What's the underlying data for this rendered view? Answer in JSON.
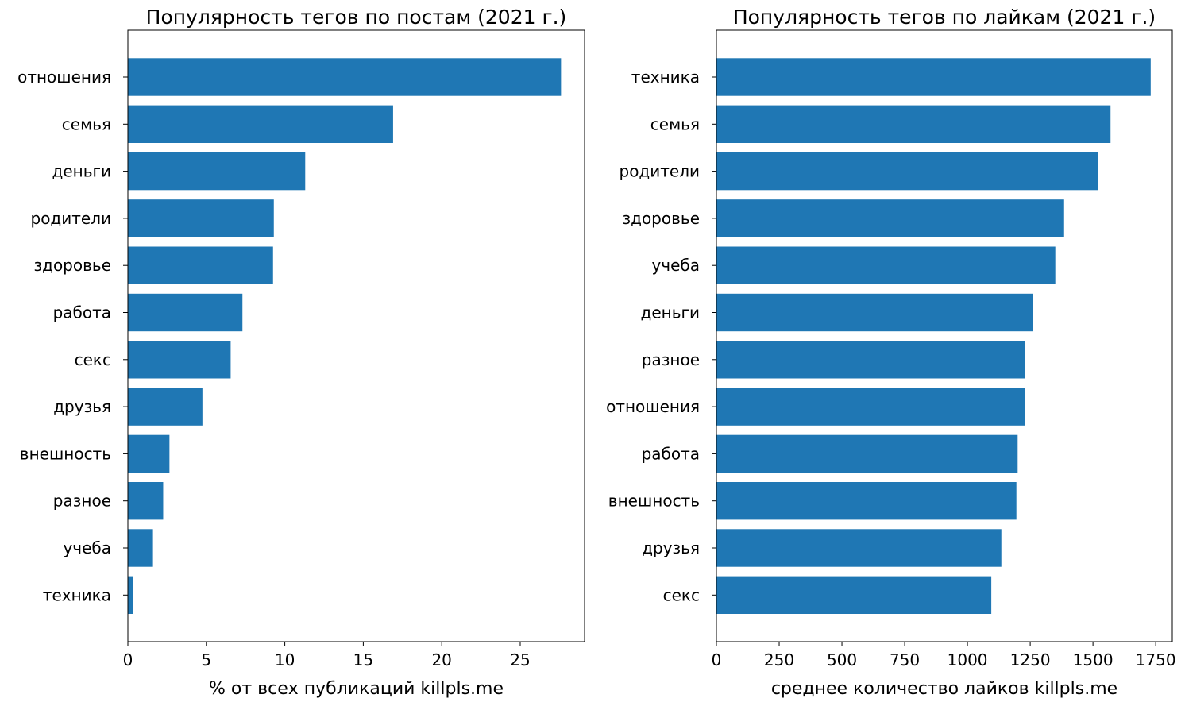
{
  "chart_data": [
    {
      "type": "bar",
      "orientation": "horizontal",
      "title": "Популярность тегов по постам (2021 г.)",
      "xlabel": "% от всех публикаций killpls.me",
      "ylabel": "",
      "categories": [
        "отношения",
        "семья",
        "деньги",
        "родители",
        "здоровье",
        "работа",
        "секс",
        "друзья",
        "внешность",
        "разное",
        "учеба",
        "техника"
      ],
      "values": [
        27.6,
        16.9,
        11.3,
        9.3,
        9.25,
        7.3,
        6.55,
        4.75,
        2.65,
        2.25,
        1.6,
        0.35
      ],
      "xlim": [
        0,
        29.1
      ],
      "xticks": [
        0,
        5,
        10,
        15,
        20,
        25
      ],
      "color": "#1f77b4",
      "grid": false
    },
    {
      "type": "bar",
      "orientation": "horizontal",
      "title": "Популярность тегов по лайкам (2021 г.)",
      "xlabel": "среднее количество лайков killpls.me",
      "ylabel": "",
      "categories": [
        "техника",
        "семья",
        "родители",
        "здоровье",
        "учеба",
        "деньги",
        "разное",
        "отношения",
        "работа",
        "внешность",
        "друзья",
        "секс"
      ],
      "values": [
        1730,
        1570,
        1520,
        1385,
        1350,
        1260,
        1230,
        1230,
        1200,
        1195,
        1135,
        1095
      ],
      "xlim": [
        0,
        1816
      ],
      "xticks": [
        0,
        250,
        500,
        750,
        1000,
        1250,
        1500,
        1750
      ],
      "color": "#1f77b4",
      "grid": false
    }
  ]
}
